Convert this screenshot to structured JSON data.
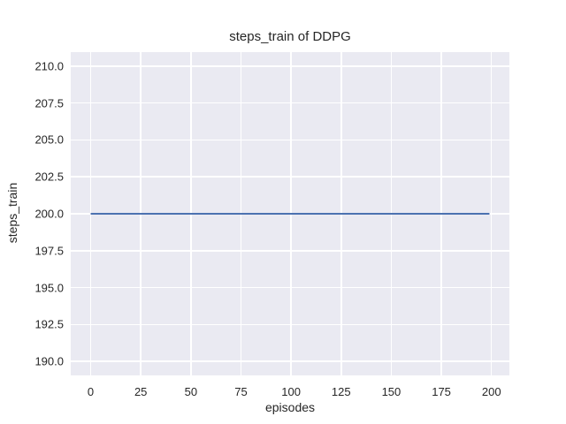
{
  "chart_data": {
    "type": "line",
    "title": "steps_train of DDPG",
    "xlabel": "episodes",
    "ylabel": "steps_train",
    "x_tick_labels": [
      "0",
      "25",
      "50",
      "75",
      "100",
      "125",
      "150",
      "175",
      "200"
    ],
    "y_tick_labels": [
      "190.0",
      "192.5",
      "195.0",
      "197.5",
      "200.0",
      "202.5",
      "205.0",
      "207.5",
      "210.0"
    ],
    "xlim": [
      -9.95,
      208.95
    ],
    "ylim": [
      189.05,
      210.95
    ],
    "grid": true,
    "legend": "none",
    "colors": {
      "plot_background": "#eaeaf2",
      "grid_color": "#ffffff",
      "text_color": "#262626",
      "figure_background": "#ffffff"
    },
    "series": [
      {
        "name": "steps_train",
        "color": "#4c72b0",
        "line_width": 2,
        "points": [
          [
            0,
            200
          ],
          [
            199,
            200
          ]
        ]
      }
    ]
  }
}
